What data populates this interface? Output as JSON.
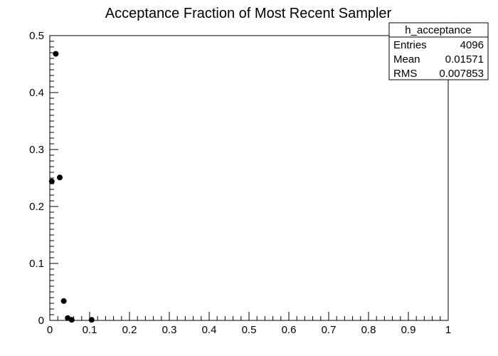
{
  "chart_data": {
    "type": "scatter",
    "title": "Acceptance Fraction of Most Recent Sampler",
    "xlabel": "",
    "ylabel": "",
    "xlim": [
      0,
      1
    ],
    "ylim": [
      0,
      0.5
    ],
    "x_ticks": [
      0,
      0.1,
      0.2,
      0.3,
      0.4,
      0.5,
      0.6,
      0.7,
      0.8,
      0.9,
      1
    ],
    "x_tick_labels": [
      "0",
      "0.1",
      "0.2",
      "0.3",
      "0.4",
      "0.5",
      "0.6",
      "0.7",
      "0.8",
      "0.9",
      "1"
    ],
    "y_ticks": [
      0,
      0.1,
      0.2,
      0.3,
      0.4,
      0.5
    ],
    "y_tick_labels": [
      "0",
      "0.1",
      "0.2",
      "0.3",
      "0.4",
      "0.5"
    ],
    "grid": false,
    "points": [
      {
        "x": 0.005,
        "y": 0.244
      },
      {
        "x": 0.015,
        "y": 0.468
      },
      {
        "x": 0.025,
        "y": 0.251
      },
      {
        "x": 0.035,
        "y": 0.034
      },
      {
        "x": 0.045,
        "y": 0.004
      },
      {
        "x": 0.055,
        "y": 0.001
      },
      {
        "x": 0.105,
        "y": 0.001
      }
    ],
    "marker_color": "#000000",
    "stats_box": {
      "placement": "top-right",
      "name": "h_acceptance",
      "rows": [
        {
          "label": "Entries",
          "value": "4096"
        },
        {
          "label": "Mean",
          "value": "0.01571"
        },
        {
          "label": "RMS",
          "value": "0.007853"
        }
      ]
    }
  }
}
